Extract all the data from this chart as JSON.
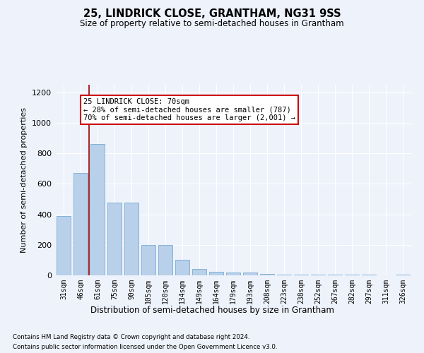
{
  "title1": "25, LINDRICK CLOSE, GRANTHAM, NG31 9SS",
  "title2": "Size of property relative to semi-detached houses in Grantham",
  "xlabel": "Distribution of semi-detached houses by size in Grantham",
  "ylabel": "Number of semi-detached properties",
  "categories": [
    "31sqm",
    "46sqm",
    "61sqm",
    "75sqm",
    "90sqm",
    "105sqm",
    "120sqm",
    "134sqm",
    "149sqm",
    "164sqm",
    "179sqm",
    "193sqm",
    "208sqm",
    "223sqm",
    "238sqm",
    "252sqm",
    "267sqm",
    "282sqm",
    "297sqm",
    "311sqm",
    "326sqm"
  ],
  "values": [
    390,
    670,
    860,
    475,
    475,
    200,
    200,
    100,
    40,
    25,
    20,
    20,
    10,
    5,
    5,
    5,
    5,
    5,
    5,
    2,
    5
  ],
  "bar_color": "#b8d0ea",
  "bar_edge_color": "#7aaad0",
  "vline_x": 1.5,
  "vline_color": "#990000",
  "annotation_text": "25 LINDRICK CLOSE: 70sqm\n← 28% of semi-detached houses are smaller (787)\n70% of semi-detached houses are larger (2,001) →",
  "annotation_box_facecolor": "#ffffff",
  "annotation_box_edgecolor": "#cc0000",
  "ylim": [
    0,
    1250
  ],
  "yticks": [
    0,
    200,
    400,
    600,
    800,
    1000,
    1200
  ],
  "footer1": "Contains HM Land Registry data © Crown copyright and database right 2024.",
  "footer2": "Contains public sector information licensed under the Open Government Licence v3.0.",
  "bg_color": "#eef2fb",
  "plot_bg_color": "#eef2fb"
}
